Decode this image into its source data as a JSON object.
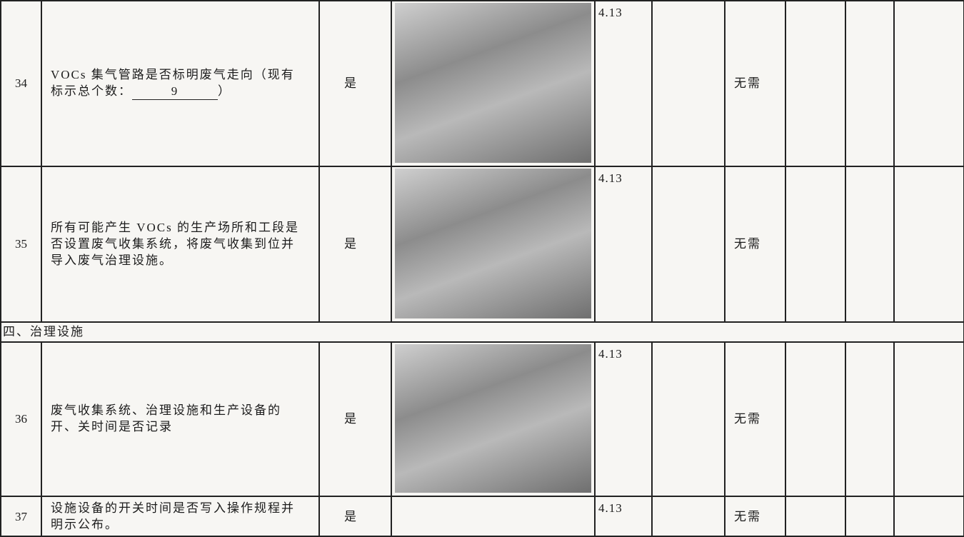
{
  "table": {
    "rows": [
      {
        "number": "34",
        "description": "VOCs 集气管路是否标明废气走向（现有标示总个数：",
        "filled_count": "9",
        "description_end": "）",
        "answer": "是",
        "date": "4.13",
        "status": "无需"
      },
      {
        "number": "35",
        "description": "所有可能产生 VOCs 的生产场所和工段是否设置废气收集系统，将废气收集到位并导入废气治理设施。",
        "answer": "是",
        "date": "4.13",
        "status": "无需"
      }
    ],
    "section_title": "四、治理设施",
    "section_rows": [
      {
        "number": "36",
        "description": "废气收集系统、治理设施和生产设备的开、关时间是否记录",
        "answer": "是",
        "date": "4.13",
        "status": "无需"
      },
      {
        "number": "37",
        "description": "设施设备的开关时间是否写入操作规程并明示公布。",
        "answer": "是",
        "date": "4.13",
        "status": "无需"
      }
    ]
  }
}
